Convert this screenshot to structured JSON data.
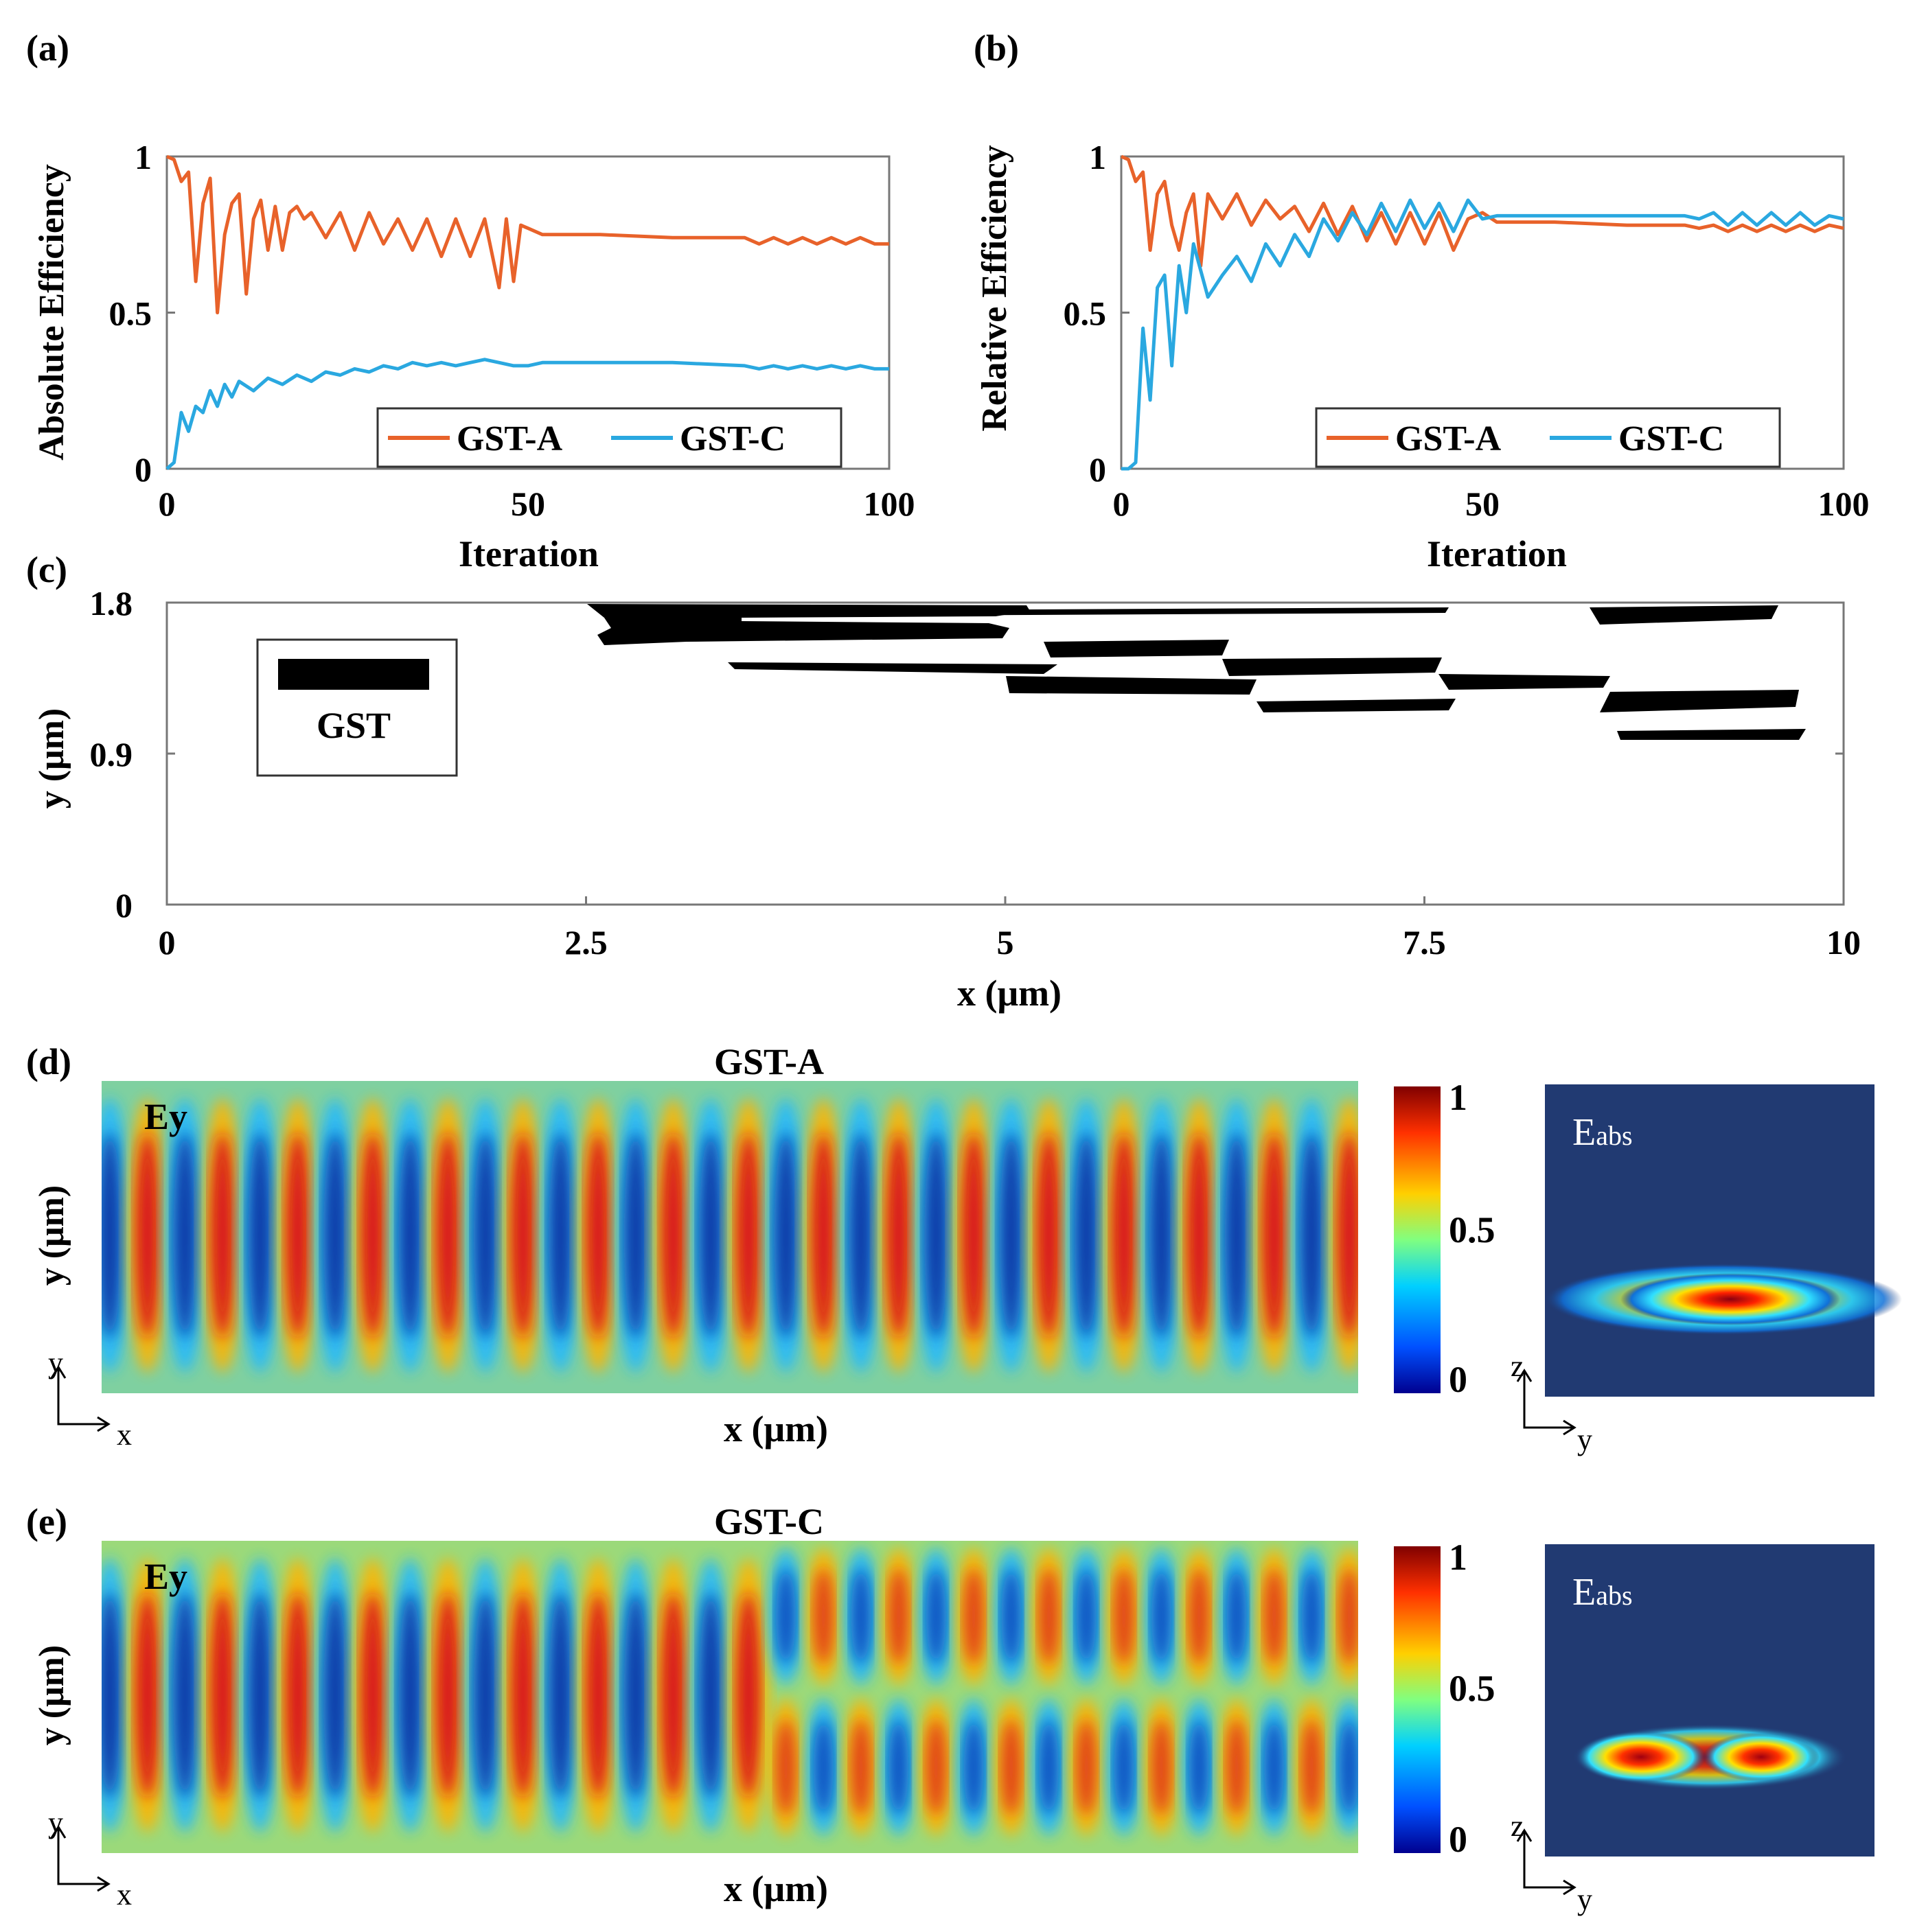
{
  "panels": {
    "a": {
      "label": "(a)",
      "ylabel": "Absolute Efficiency",
      "xlabel": "Iteration",
      "xticks": [
        "0",
        "50",
        "100"
      ],
      "yticks": [
        "0",
        "0.5",
        "1"
      ]
    },
    "b": {
      "label": "(b)",
      "ylabel": "Relative Efficiency",
      "xlabel": "Iteration",
      "xticks": [
        "0",
        "50",
        "100"
      ],
      "yticks": [
        "0",
        "0.5",
        "1"
      ]
    },
    "c": {
      "label": "(c)",
      "ylabel": "y (μm)",
      "xlabel": "x (μm)",
      "xticks": [
        "0",
        "2.5",
        "5",
        "7.5",
        "10"
      ],
      "yticks": [
        "0",
        "0.9",
        "1.8"
      ],
      "legend": "GST"
    },
    "d": {
      "label": "(d)",
      "title": "GST-A",
      "field": "Ey",
      "ylabel": "y (μm)",
      "xlabel": "x (μm)",
      "axis_x": "x",
      "axis_y": "y",
      "inset_label": "E",
      "inset_sub": "abs",
      "inset_axis_x": "y",
      "inset_axis_y": "z"
    },
    "e": {
      "label": "(e)",
      "title": "GST-C",
      "field": "Ey",
      "ylabel": "y (μm)",
      "xlabel": "x (μm)",
      "axis_x": "x",
      "axis_y": "y",
      "inset_label": "E",
      "inset_sub": "abs",
      "inset_axis_x": "y",
      "inset_axis_y": "z"
    }
  },
  "colorbar": {
    "ticks": [
      "1",
      "0.5",
      "0"
    ]
  },
  "colors": {
    "gst_a": "#e8622a",
    "gst_c": "#2aa8e0"
  },
  "chart_data": [
    {
      "type": "line",
      "title": "(a)",
      "xlabel": "Iteration",
      "ylabel": "Absolute Efficiency",
      "xlim": [
        0,
        100
      ],
      "ylim": [
        0,
        1
      ],
      "legend": "bottom-right",
      "series": [
        {
          "name": "GST-A",
          "x": [
            0,
            1,
            2,
            3,
            4,
            5,
            6,
            7,
            8,
            9,
            10,
            11,
            12,
            13,
            14,
            15,
            16,
            17,
            18,
            19,
            20,
            22,
            24,
            26,
            28,
            30,
            32,
            34,
            36,
            38,
            40,
            42,
            44,
            46,
            47,
            48,
            49,
            50,
            52,
            55,
            60,
            70,
            80,
            82,
            84,
            86,
            88,
            90,
            92,
            94,
            96,
            98,
            100
          ],
          "y": [
            1.0,
            0.99,
            0.92,
            0.95,
            0.6,
            0.85,
            0.93,
            0.5,
            0.75,
            0.85,
            0.88,
            0.56,
            0.8,
            0.86,
            0.7,
            0.84,
            0.7,
            0.82,
            0.84,
            0.8,
            0.82,
            0.74,
            0.82,
            0.7,
            0.82,
            0.72,
            0.8,
            0.7,
            0.8,
            0.68,
            0.8,
            0.68,
            0.8,
            0.58,
            0.8,
            0.6,
            0.78,
            0.77,
            0.75,
            0.75,
            0.75,
            0.74,
            0.74,
            0.72,
            0.74,
            0.72,
            0.74,
            0.72,
            0.74,
            0.72,
            0.74,
            0.72,
            0.72
          ]
        },
        {
          "name": "GST-C",
          "x": [
            0,
            1,
            2,
            3,
            4,
            5,
            6,
            7,
            8,
            9,
            10,
            12,
            14,
            16,
            18,
            20,
            22,
            24,
            26,
            28,
            30,
            32,
            34,
            36,
            38,
            40,
            42,
            44,
            46,
            48,
            50,
            52,
            55,
            60,
            70,
            80,
            82,
            84,
            86,
            88,
            90,
            92,
            94,
            96,
            98,
            100
          ],
          "y": [
            0.0,
            0.02,
            0.18,
            0.12,
            0.2,
            0.18,
            0.25,
            0.2,
            0.27,
            0.23,
            0.28,
            0.25,
            0.29,
            0.27,
            0.3,
            0.28,
            0.31,
            0.3,
            0.32,
            0.31,
            0.33,
            0.32,
            0.34,
            0.33,
            0.34,
            0.33,
            0.34,
            0.35,
            0.34,
            0.33,
            0.33,
            0.34,
            0.34,
            0.34,
            0.34,
            0.33,
            0.32,
            0.33,
            0.32,
            0.33,
            0.32,
            0.33,
            0.32,
            0.33,
            0.32,
            0.32
          ]
        }
      ]
    },
    {
      "type": "line",
      "title": "(b)",
      "xlabel": "Iteration",
      "ylabel": "Relative Efficiency",
      "xlim": [
        0,
        100
      ],
      "ylim": [
        0,
        1
      ],
      "legend": "bottom-right",
      "series": [
        {
          "name": "GST-A",
          "x": [
            0,
            1,
            2,
            3,
            4,
            5,
            6,
            7,
            8,
            9,
            10,
            11,
            12,
            14,
            16,
            18,
            20,
            22,
            24,
            26,
            28,
            30,
            32,
            34,
            36,
            38,
            40,
            42,
            44,
            46,
            48,
            50,
            52,
            55,
            60,
            70,
            78,
            80,
            82,
            84,
            86,
            88,
            90,
            92,
            94,
            96,
            98,
            100
          ],
          "y": [
            1.0,
            0.99,
            0.92,
            0.95,
            0.7,
            0.88,
            0.92,
            0.78,
            0.7,
            0.82,
            0.88,
            0.65,
            0.88,
            0.8,
            0.88,
            0.78,
            0.86,
            0.8,
            0.84,
            0.76,
            0.85,
            0.75,
            0.84,
            0.73,
            0.82,
            0.72,
            0.82,
            0.72,
            0.82,
            0.7,
            0.8,
            0.82,
            0.79,
            0.79,
            0.79,
            0.78,
            0.78,
            0.77,
            0.78,
            0.76,
            0.78,
            0.76,
            0.78,
            0.76,
            0.78,
            0.76,
            0.78,
            0.77
          ]
        },
        {
          "name": "GST-C",
          "x": [
            0,
            1,
            2,
            3,
            4,
            5,
            6,
            7,
            8,
            9,
            10,
            12,
            14,
            16,
            18,
            20,
            22,
            24,
            26,
            28,
            30,
            32,
            34,
            36,
            38,
            40,
            42,
            44,
            46,
            48,
            50,
            52,
            55,
            60,
            70,
            78,
            80,
            82,
            84,
            86,
            88,
            90,
            92,
            94,
            96,
            98,
            100
          ],
          "y": [
            0.0,
            0.0,
            0.02,
            0.45,
            0.22,
            0.58,
            0.62,
            0.33,
            0.65,
            0.5,
            0.72,
            0.55,
            0.62,
            0.68,
            0.6,
            0.72,
            0.65,
            0.75,
            0.68,
            0.8,
            0.73,
            0.82,
            0.75,
            0.85,
            0.76,
            0.86,
            0.77,
            0.85,
            0.76,
            0.86,
            0.8,
            0.81,
            0.81,
            0.81,
            0.81,
            0.81,
            0.8,
            0.82,
            0.78,
            0.82,
            0.78,
            0.82,
            0.78,
            0.82,
            0.78,
            0.81,
            0.8
          ]
        }
      ]
    }
  ]
}
